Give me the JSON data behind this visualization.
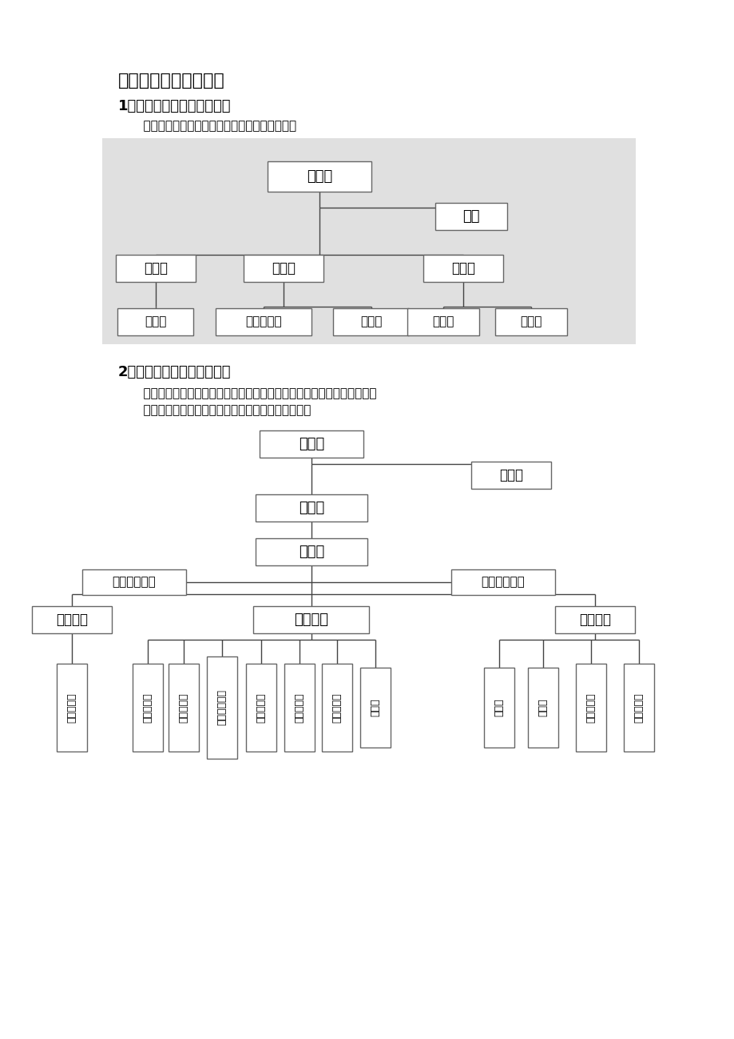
{
  "bg_color": "#ffffff",
  "title1": "一、外贸公司组织结构",
  "subtitle1": "1、外贸公司组织的一般结构",
  "desc1": "    一般来说，外贸公司由以下几个主要部门构成：",
  "subtitle2": "2、外贸公司组织的复杂结构",
  "desc2a": "    但是，实际的外贸公司组织结构往往比较复杂，尤其是规模较大的公司。",
  "desc2b": "    以下是一个规模较大的外贸公司的组织结构示意图：",
  "diagram1_bg": "#e0e0e0",
  "box_fill": "#ffffff",
  "box_edge": "#666666",
  "text_color": "#000000",
  "line_color": "#444444"
}
